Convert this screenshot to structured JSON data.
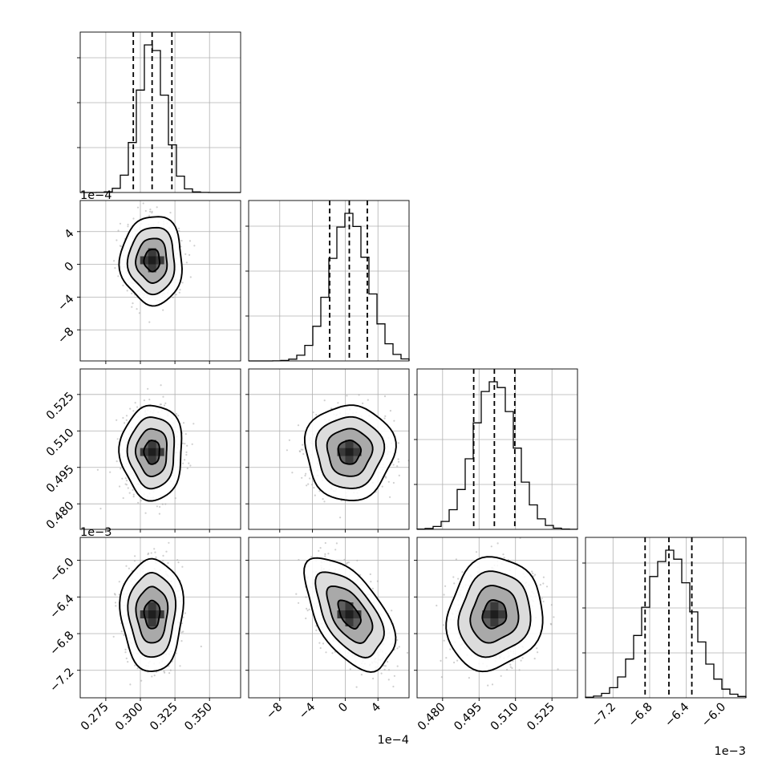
{
  "chart_data": {
    "type": "corner",
    "title": "",
    "parameters": [
      {
        "key": "p0",
        "range": [
          0.2565,
          0.3725
        ],
        "ticks": [
          0.275,
          0.3,
          0.325,
          0.35
        ],
        "tick_labels": [
          "0.275",
          "0.300",
          "0.325",
          "0.350"
        ],
        "offset_label": "",
        "quantiles": [
          0.2949,
          0.3085,
          0.3228
        ],
        "mean": 0.3085,
        "sd": 0.0095
      },
      {
        "key": "p1",
        "range": [
          -0.00118,
          0.00078
        ],
        "ticks": [
          -0.0008,
          -0.0004,
          0.0,
          0.0004
        ],
        "tick_labels": [
          "−8",
          "−4",
          "0",
          "4"
        ],
        "offset_label": "1e−4",
        "quantiles": [
          -0.00019,
          5e-05,
          0.00027
        ],
        "mean": 5e-05,
        "sd": 0.00023
      },
      {
        "key": "p2",
        "range": [
          0.4695,
          0.5355
        ],
        "ticks": [
          0.48,
          0.495,
          0.51,
          0.525
        ],
        "tick_labels": [
          "0.480",
          "0.495",
          "0.510",
          "0.525"
        ],
        "offset_label": "",
        "quantiles": [
          0.4928,
          0.5013,
          0.5097
        ],
        "mean": 0.5013,
        "sd": 0.0083
      },
      {
        "key": "p3",
        "range": [
          -0.0075,
          -0.00575
        ],
        "ticks": [
          -0.0072,
          -0.0068,
          -0.0064,
          -0.006
        ],
        "tick_labels": [
          "−7.2",
          "−6.8",
          "−6.4",
          "−6.0"
        ],
        "offset_label": "1e−3",
        "quantiles": [
          -0.00685,
          -0.00659,
          -0.00634
        ],
        "mean": -0.00659,
        "sd": 0.00026
      }
    ],
    "correlations": [
      [
        1.0,
        0.0,
        0.0,
        0.0
      ],
      [
        0.0,
        1.0,
        0.0,
        -0.55
      ],
      [
        0.0,
        0.0,
        1.0,
        0.1
      ],
      [
        0.0,
        -0.55,
        0.1,
        1.0
      ]
    ],
    "histogram": {
      "bins": 20,
      "style": "step"
    },
    "quantile_lines": "dashed",
    "contour_levels_sigma": [
      0.5,
      1.0,
      1.5,
      2.0
    ],
    "grid": true,
    "colors": {
      "ink": "#000000",
      "grid": "#b0b0b0",
      "scatter": "#a8a8a8"
    }
  }
}
